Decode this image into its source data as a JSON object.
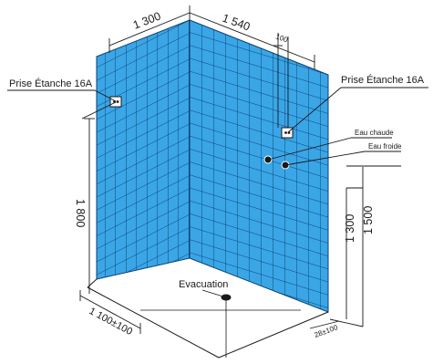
{
  "dimensions": {
    "wall_left_width": "1 300",
    "wall_right_width": "1 540",
    "socket_offset": "100",
    "wall_height": "1 800",
    "water_height": "1 300",
    "socket_height": "1 500",
    "floor_drain_offset_left": "1 100±100",
    "floor_drain_offset_right": "28±100"
  },
  "labels": {
    "socket_left": "Prise Étanche 16A",
    "socket_right": "Prise Étanche 16A",
    "hot_water": "Eau chaude",
    "cold_water": "Eau froide",
    "drain": "Evacuation"
  },
  "colors": {
    "tile": "#3aa6e6",
    "grout": "#0b3f73",
    "line": "#1a1a1a"
  }
}
